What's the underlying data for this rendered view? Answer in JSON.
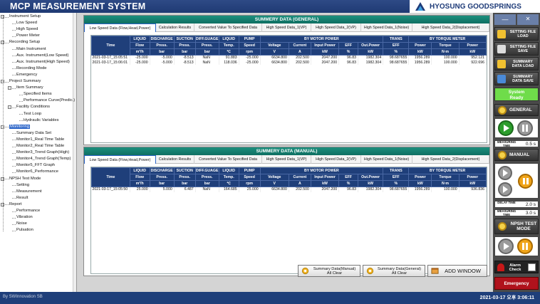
{
  "app_title": "MCP MEASUREMENT SYSTEM",
  "brand": "HYOSUNG GOODSPRINGS",
  "sidebar": {
    "items": [
      {
        "label": "Instrument Setup",
        "level": 0,
        "expander": "−"
      },
      {
        "label": "Low Speed",
        "level": 1
      },
      {
        "label": "High Speed",
        "level": 1
      },
      {
        "label": "Power Meter",
        "level": 1
      },
      {
        "label": "Recording Setup",
        "level": 0,
        "expander": "−"
      },
      {
        "label": "Main Instrument",
        "level": 1
      },
      {
        "label": "Aux. Instrument(Low Speed)",
        "level": 1
      },
      {
        "label": "Aux. Instrument(High Speed)",
        "level": 1
      },
      {
        "label": "Recording Mode",
        "level": 1
      },
      {
        "label": "Emergency",
        "level": 1
      },
      {
        "label": "Project Summary",
        "level": 0,
        "expander": "−"
      },
      {
        "label": "Item Summary",
        "level": 1,
        "expander": "−"
      },
      {
        "label": "Specified Items",
        "level": 2
      },
      {
        "label": "Performance Curve(Predic.)",
        "level": 2
      },
      {
        "label": "Facility Conditions",
        "level": 1,
        "expander": "−"
      },
      {
        "label": "Test Loop",
        "level": 2
      },
      {
        "label": "Hydraulic Variables",
        "level": 2
      },
      {
        "label": "Monitoring",
        "level": 0,
        "expander": "−",
        "selected": true
      },
      {
        "label": "Summary Data Set",
        "level": 1
      },
      {
        "label": "Monitor1_Real Time Table",
        "level": 1
      },
      {
        "label": "Monitor2_Real Time Table",
        "level": 1
      },
      {
        "label": "Monitor3_Trend Graph(High)",
        "level": 1
      },
      {
        "label": "Monitor4_Trend Graph(Temp)",
        "level": 1
      },
      {
        "label": "Monitor5_FFT Graph",
        "level": 1
      },
      {
        "label": "Monitor6_Performance",
        "level": 1
      },
      {
        "label": "NPSH Test Mode",
        "level": 0,
        "expander": "−"
      },
      {
        "label": "Setting",
        "level": 1
      },
      {
        "label": "Measurement",
        "level": 1
      },
      {
        "label": "Result",
        "level": 1
      },
      {
        "label": "Report",
        "level": 0,
        "expander": "−"
      },
      {
        "label": "Performance",
        "level": 1
      },
      {
        "label": "Vibration",
        "level": 1
      },
      {
        "label": "Noise",
        "level": 1
      },
      {
        "label": "Pulsation",
        "level": 1
      }
    ]
  },
  "tabs": [
    "Low Speed Data (Flow,Head,Power)",
    "Calculation Results",
    "Converted Value To Specified Data",
    "High Speed Data_1(VP)",
    "High Speed Data_2(VP)",
    "High Speed Data_1(Noise)",
    "High Speed Data_2(Displacement)"
  ],
  "table_headers": {
    "group": [
      "LIQUID",
      "DISCHARGE",
      "SUCTION",
      "DIFF.GUAGE",
      "LIQUID",
      "PUMP",
      "BY MOTOR POWER",
      "TRANS",
      "BY TORQUE METER"
    ],
    "time": "Time",
    "names": [
      "Flow",
      "Press.",
      "Press.",
      "Press.",
      "Temp.",
      "Speed",
      "Voltage",
      "Current",
      "Input Power",
      "EFF",
      "Out.Power",
      "EFF",
      "Power",
      "Torque",
      "Power"
    ],
    "units": [
      "m³/h",
      "bar",
      "bar",
      "bar",
      "℃",
      "rpm",
      "V",
      "A",
      "kW",
      "%",
      "kW",
      "%",
      "kW",
      "N·m",
      "kW"
    ]
  },
  "general": {
    "title": "SUMMERY DATA (GENERAL)",
    "rows": [
      [
        "2021-03-17_15:05:51",
        "-25.000",
        "-5.000",
        "-8.513",
        "NaN",
        "91.883",
        "-25.000",
        "6634.800",
        "202.500",
        "2047.200",
        "96.83",
        "1982.304",
        "98.687655",
        "1956.289",
        "100.000",
        "952.121"
      ],
      [
        "2021-03-17_15:06:01",
        "-25.000",
        "-5.000",
        "-8.513",
        "NaN",
        "118.036",
        "-25.000",
        "6634.800",
        "202.500",
        "2047.200",
        "96.83",
        "1982.304",
        "98.687655",
        "1956.289",
        "100.000",
        "922.696"
      ]
    ]
  },
  "manual": {
    "title": "SUMMERY DATA (MANUAL)",
    "rows": [
      [
        "2021-03-17_15:05:50",
        "25.000",
        "5.000",
        "6.487",
        "NaN",
        "164.685",
        "25.000",
        "6634.800",
        "202.500",
        "2047.200",
        "96.83",
        "1982.304",
        "98.687655",
        "1956.289",
        "100.000",
        "936.836"
      ]
    ]
  },
  "bottom_buttons": {
    "manual_clear": [
      "Summary Data(Manual)",
      "All Clear"
    ],
    "general_clear": [
      "Summary Data(General)",
      "All Clear"
    ],
    "add_window": "ADD WINDOW"
  },
  "right_panel": {
    "setting_load": "SETTING FILE LOAD",
    "setting_save": "SETTING FILE SAVE",
    "summary_load": "SUMMARY DATA LOAD",
    "summary_save": "SUMMARY DATA SAVE",
    "status": [
      "System",
      "Ready"
    ],
    "general": "GENERAL",
    "measuring_time_label": "MEASURING TIME",
    "general_time": "0.5 s",
    "manual": "MANUAL",
    "delay_time_label": "DELAY TIME",
    "delay_time": "2.0 s",
    "manual_time": "3.0 s",
    "npsh": "NPSH TEST MODE",
    "alarm": [
      "Alarm",
      "Check"
    ],
    "emergency": "Emergency"
  },
  "footer": {
    "by": "By SWInnovation SB",
    "datetime": "2021-03-17 오후 3:06:11"
  },
  "colors": {
    "header_blue": "#1f3f7a",
    "teal": "#138575",
    "ready_green": "#6fdc4a",
    "emergency_red": "#b0121c"
  }
}
